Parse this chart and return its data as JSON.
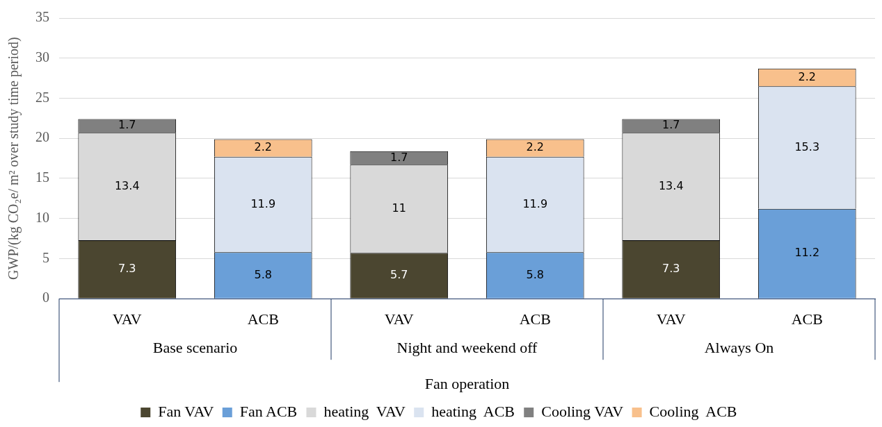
{
  "chart_data": {
    "type": "bar",
    "stacked": true,
    "ylabel": "GWP/(kg CO₂e/ m² over study time period)",
    "xlabel": "Fan operation",
    "categories": [
      "VAV",
      "ACB",
      "VAV",
      "ACB",
      "VAV",
      "ACB"
    ],
    "annotations": [
      "Base scenario",
      "Night and weekend off",
      "Always On"
    ],
    "series": [
      {
        "name": "Fan VAV",
        "color": "#4b4630",
        "values": [
          7.3,
          null,
          5.7,
          null,
          7.3,
          null
        ]
      },
      {
        "name": "Fan ACB",
        "color": "#6a9fd8",
        "values": [
          null,
          5.8,
          null,
          5.8,
          null,
          11.2
        ]
      },
      {
        "name": "heating  VAV",
        "color": "#d9d9d9",
        "values": [
          13.4,
          null,
          11,
          null,
          13.4,
          null
        ]
      },
      {
        "name": "heating  ACB",
        "color": "#dae3f0",
        "values": [
          null,
          11.9,
          null,
          11.9,
          null,
          15.3
        ]
      },
      {
        "name": "Cooling VAV",
        "color": "#808080",
        "values": [
          1.7,
          null,
          1.7,
          null,
          1.7,
          null
        ]
      },
      {
        "name": "Cooling  ACB",
        "color": "#f8c08c",
        "values": [
          null,
          2.2,
          null,
          2.2,
          null,
          2.2
        ]
      }
    ],
    "ylim": [
      0,
      35
    ],
    "yticks": [
      0,
      5,
      10,
      15,
      20,
      25,
      30,
      35
    ],
    "grid": "y",
    "legend": "bottom",
    "data_labels": true
  }
}
